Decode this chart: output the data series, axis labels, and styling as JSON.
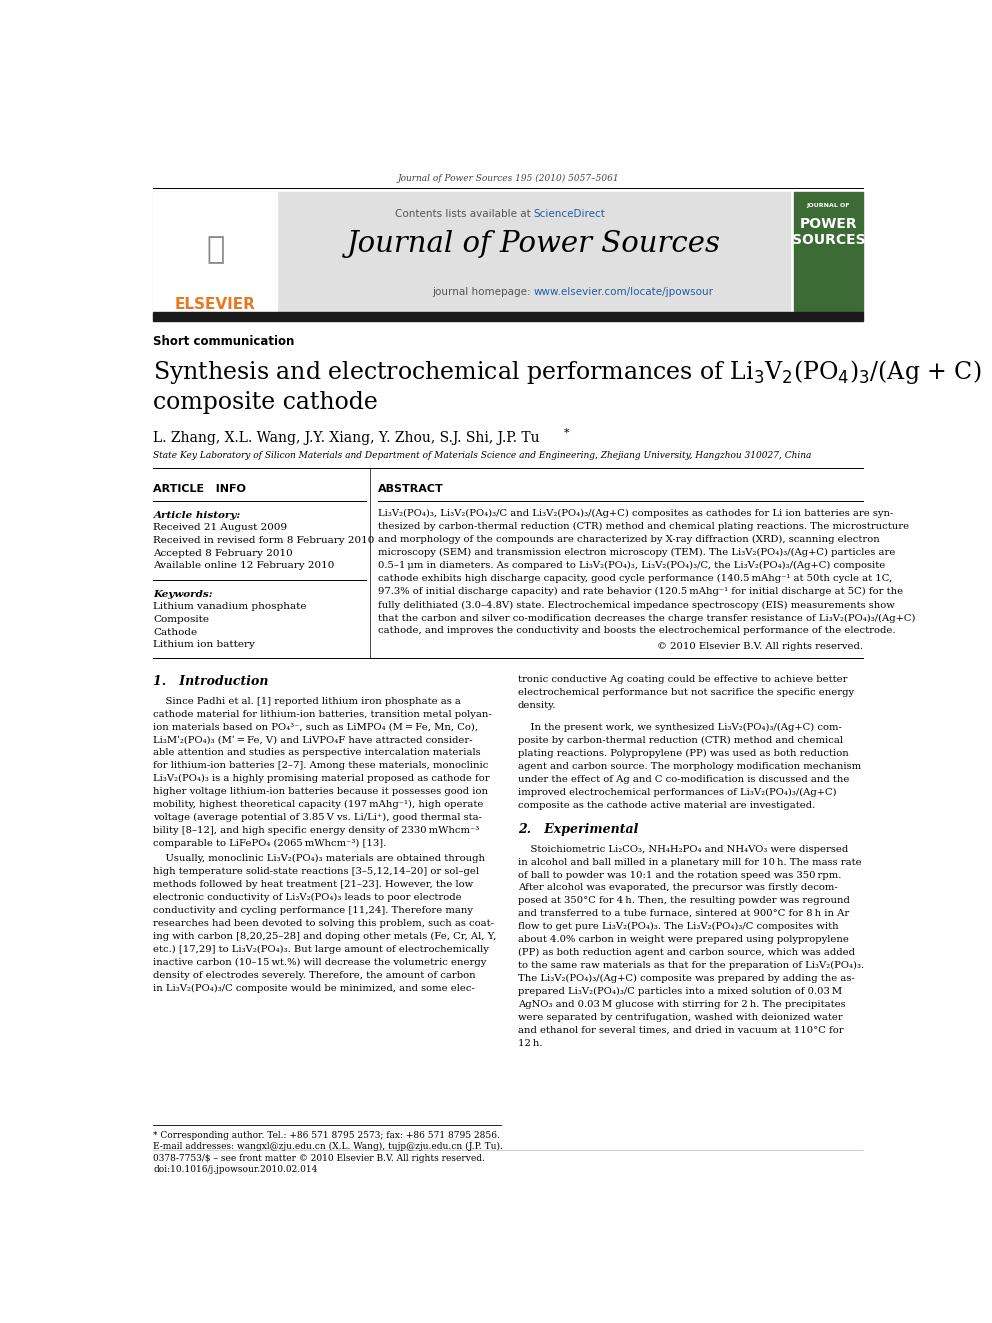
{
  "page_width": 9.92,
  "page_height": 13.23,
  "bg_color": "#ffffff",
  "journal_ref": "Journal of Power Sources 195 (2010) 5057–5061",
  "header_bg": "#e0e0e0",
  "contents_line1": "Contents lists available at ",
  "contents_line2": "ScienceDirect",
  "sciencedirect_color": "#2060a0",
  "journal_name": "Journal of Power Sources",
  "homepage_prefix": "journal homepage: ",
  "homepage_url": "www.elsevier.com/locate/jpowsour",
  "homepage_url_color": "#2060a0",
  "section_type": "Short communication",
  "title_line1": "Synthesis and electrochemical performances of Li$_3$V$_2$(PO$_4$)$_3$/(Ag + C)",
  "title_line2": "composite cathode",
  "authors_line": "L. Zhang, X.L. Wang, J.Y. Xiang, Y. Zhou, S.J. Shi, J.P. Tu",
  "affiliation": "State Key Laboratory of Silicon Materials and Department of Materials Science and Engineering, Zhejiang University, Hangzhou 310027, China",
  "article_info_header": "ARTICLE   INFO",
  "abstract_header": "ABSTRACT",
  "article_history_label": "Article history:",
  "received1": "Received 21 August 2009",
  "received2": "Received in revised form 8 February 2010",
  "accepted": "Accepted 8 February 2010",
  "available": "Available online 12 February 2010",
  "keywords_label": "Keywords:",
  "keyword1": "Lithium vanadium phosphate",
  "keyword2": "Composite",
  "keyword3": "Cathode",
  "keyword4": "Lithium ion battery",
  "copyright_text": "© 2010 Elsevier B.V. All rights reserved.",
  "intro_header": "1.   Introduction",
  "section2_header": "2.   Experimental",
  "footnote1": "* Corresponding author. Tel.: +86 571 8795 2573; fax: +86 571 8795 2856.",
  "footnote2": "E-mail addresses: wangxl@zju.edu.cn (X.L. Wang), tujp@zju.edu.cn (J.P. Tu).",
  "issn_line": "0378-7753/$ – see front matter © 2010 Elsevier B.V. All rights reserved.",
  "doi_line": "doi:10.1016/j.jpowsour.2010.02.014",
  "elsevier_orange": "#e87820",
  "cover_green": "#3d6b35",
  "dark_bar_color": "#1a1a1a",
  "black": "#000000",
  "gray_text": "#555555"
}
